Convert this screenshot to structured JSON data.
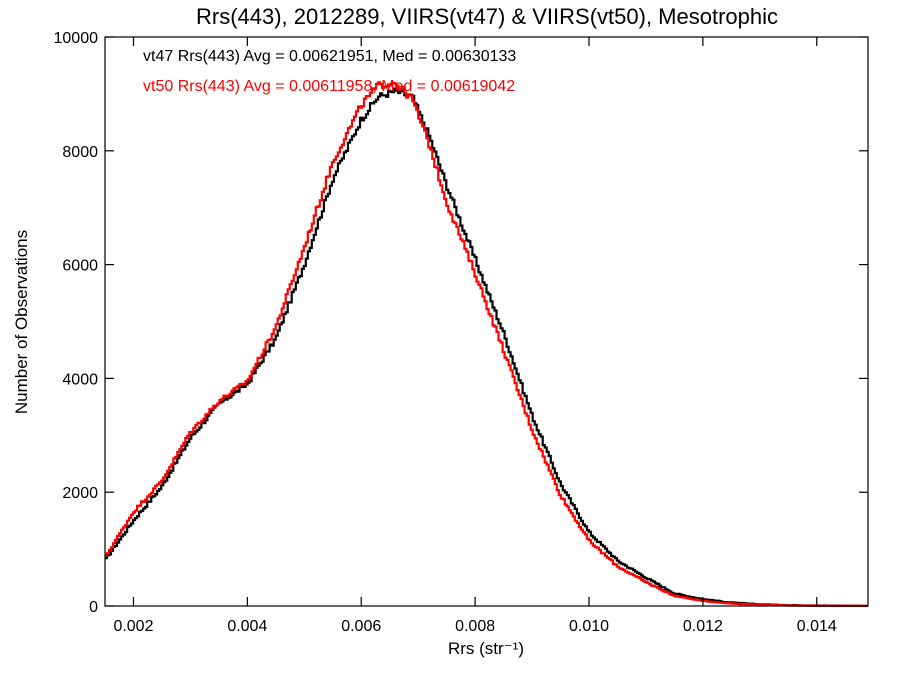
{
  "chart_data": {
    "type": "line",
    "title": "Rrs(443), 2012289, VIIRS(vt47) & VIIRS(vt50), Mesotrophic",
    "xlabel": "Rrs (str⁻¹)",
    "ylabel": "Number of Observations",
    "xlim": [
      0.0015,
      0.0149
    ],
    "ylim": [
      0,
      10000
    ],
    "x_ticks": [
      "0.002",
      "0.004",
      "0.006",
      "0.008",
      "0.010",
      "0.012",
      "0.014"
    ],
    "y_ticks": [
      "0",
      "2000",
      "4000",
      "6000",
      "8000",
      "10000"
    ],
    "grid": false,
    "step_style": "histogram",
    "annotations": [
      {
        "text": "vt47 Rrs(443) Avg = 0.00621951, Med = 0.00630133",
        "color": "#000000"
      },
      {
        "text": "vt50 Rrs(443) Avg = 0.00611958, Med = 0.00619042",
        "color": "#ff0000"
      }
    ],
    "series": [
      {
        "name": "vt47",
        "color": "#000000",
        "x": [
          0.0015,
          0.002,
          0.0025,
          0.003,
          0.0035,
          0.004,
          0.0045,
          0.005,
          0.0055,
          0.006,
          0.0063,
          0.0066,
          0.0069,
          0.0072,
          0.0075,
          0.008,
          0.0085,
          0.009,
          0.0095,
          0.01,
          0.0105,
          0.011,
          0.0115,
          0.012,
          0.0125,
          0.013,
          0.0135,
          0.014,
          0.0149
        ],
        "values": [
          800,
          1500,
          2100,
          2950,
          3550,
          3900,
          4700,
          6000,
          7500,
          8550,
          8950,
          9050,
          8950,
          8250,
          7400,
          6100,
          4800,
          3350,
          2150,
          1300,
          800,
          500,
          220,
          120,
          60,
          30,
          15,
          8,
          3
        ]
      },
      {
        "name": "vt50",
        "color": "#ff0000",
        "x": [
          0.0015,
          0.002,
          0.0025,
          0.003,
          0.0035,
          0.004,
          0.0045,
          0.005,
          0.0055,
          0.006,
          0.0063,
          0.0066,
          0.0069,
          0.0072,
          0.0075,
          0.008,
          0.0085,
          0.009,
          0.0095,
          0.01,
          0.0105,
          0.011,
          0.0115,
          0.012,
          0.0125,
          0.013,
          0.0135,
          0.014,
          0.0149
        ],
        "values": [
          850,
          1650,
          2200,
          3050,
          3600,
          3950,
          4900,
          6300,
          7800,
          8800,
          9150,
          9200,
          8900,
          8100,
          7100,
          5850,
          4500,
          3100,
          1950,
          1150,
          700,
          420,
          180,
          90,
          45,
          22,
          10,
          5,
          2
        ]
      }
    ]
  }
}
